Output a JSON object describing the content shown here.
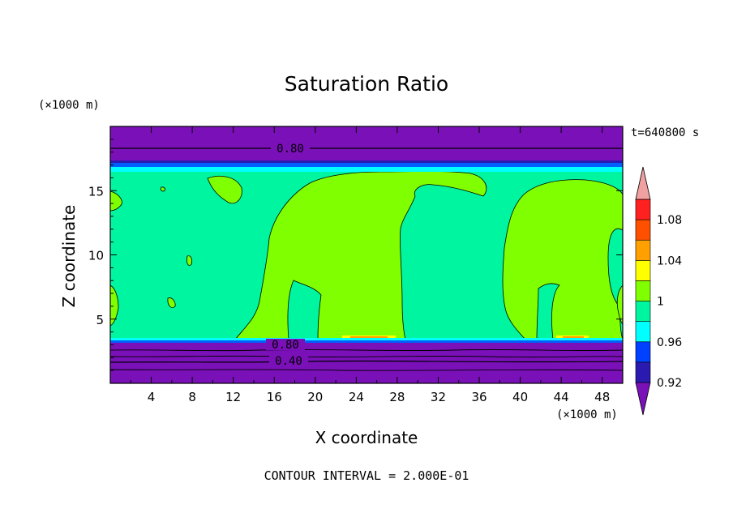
{
  "chart_data": {
    "type": "contour",
    "title": "Saturation Ratio",
    "xlabel": "X coordinate",
    "ylabel": "Z coordinate",
    "x_unit": "(×1000 m)",
    "y_unit": "(×1000 m)",
    "time_label": "t=640800 s",
    "footer": "CONTOUR INTERVAL = 2.000E-01",
    "xlim": [
      0,
      50
    ],
    "ylim": [
      0,
      20
    ],
    "x_ticks": [
      4,
      8,
      12,
      16,
      20,
      24,
      28,
      32,
      36,
      40,
      44,
      48
    ],
    "y_ticks": [
      5,
      10,
      15
    ],
    "contour_labels": [
      "0.80",
      "0.80",
      "0.40"
    ],
    "colorbar": {
      "tick_labels": [
        "1.08",
        "1.04",
        "1",
        "0.96",
        "0.92"
      ],
      "colors": [
        "#7a10b8",
        "#2a1ab0",
        "#0040ff",
        "#00ffff",
        "#00f5a0",
        "#80ff00",
        "#ffff00",
        "#ffa000",
        "#ff5000",
        "#ff2020",
        "#f0a0a0"
      ]
    },
    "colors": {
      "below": "#7a10b8",
      "sub_1": "#0060ff",
      "near_1": "#00f5a0",
      "above_1": "#80ff00",
      "peak": "#ffa000"
    }
  }
}
